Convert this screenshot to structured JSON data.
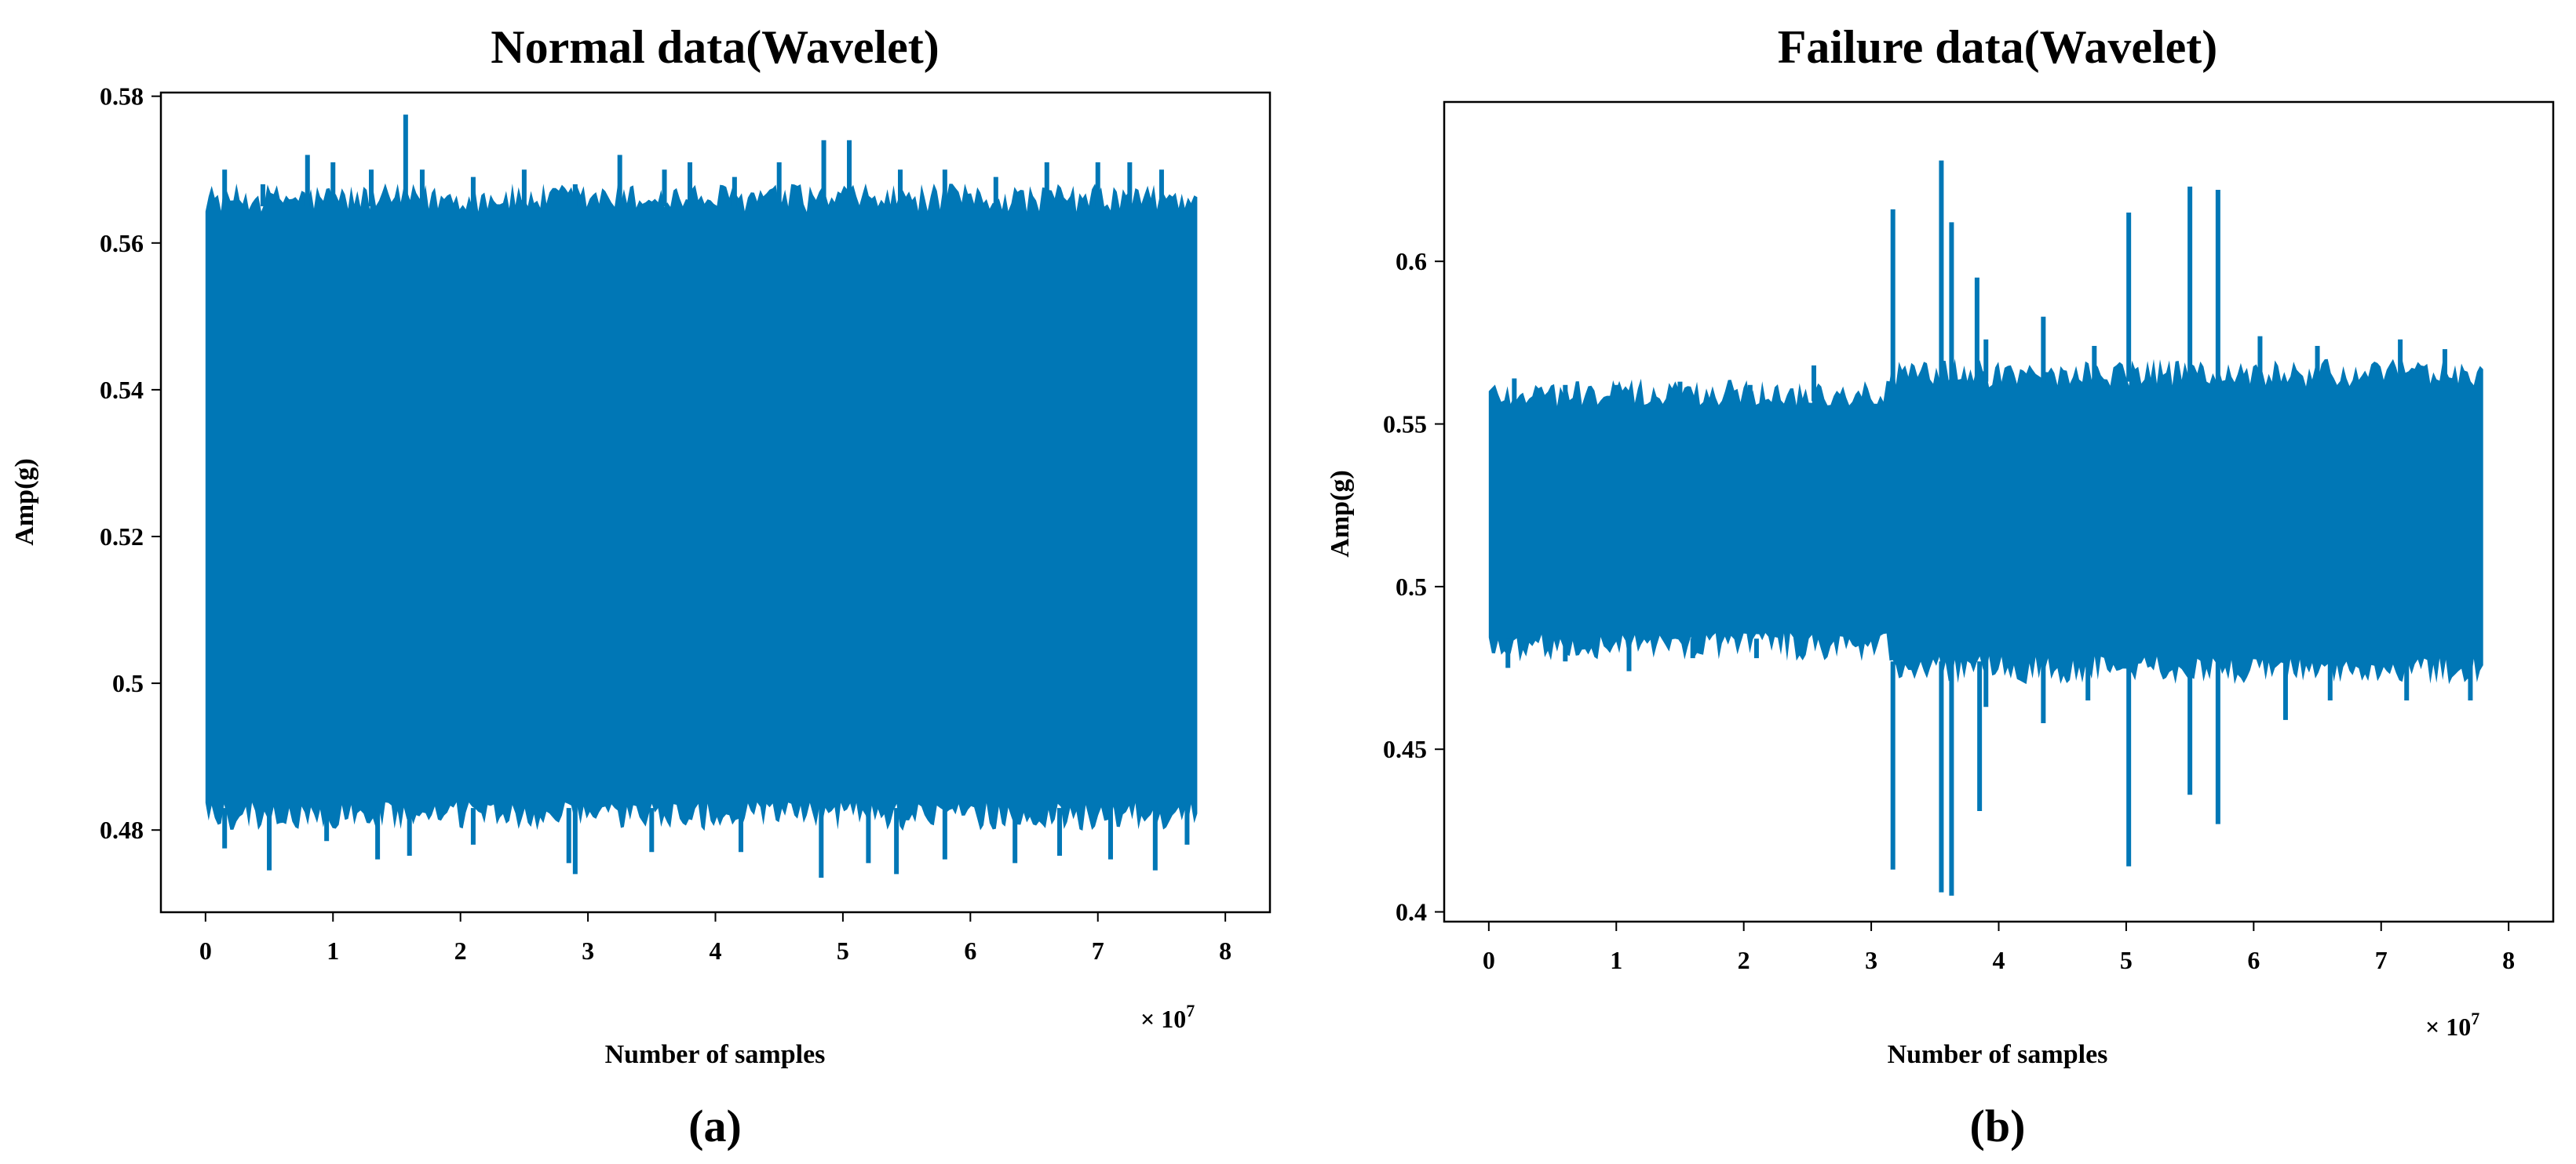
{
  "chart_data": [
    {
      "type": "line",
      "title": "Normal data(Wavelet)",
      "xlabel": "Number of samples",
      "ylabel": "Amp(g)",
      "x_multiplier": "× 10",
      "x_multiplier_exp": "7",
      "caption": "(a)",
      "xlim": [
        -0.35,
        8.35
      ],
      "ylim": [
        0.4688,
        0.5805
      ],
      "xticks": [
        0,
        1,
        2,
        3,
        4,
        5,
        6,
        7,
        8
      ],
      "xtick_labels": [
        "0",
        "1",
        "2",
        "3",
        "4",
        "5",
        "6",
        "7",
        "8"
      ],
      "yticks": [
        0.48,
        0.5,
        0.52,
        0.54,
        0.56,
        0.58
      ],
      "ytick_labels": [
        "0.48",
        "0.5",
        "0.52",
        "0.54",
        "0.56",
        "0.58"
      ],
      "grid": false,
      "series": [
        {
          "color": "#0077b6",
          "x_range": [
            0,
            7.78
          ],
          "band": {
            "upper": 0.565,
            "lower": 0.483
          },
          "upper_spikes": [
            [
              0.15,
              0.57
            ],
            [
              0.45,
              0.568
            ],
            [
              0.8,
              0.572
            ],
            [
              1.0,
              0.571
            ],
            [
              1.3,
              0.57
            ],
            [
              1.57,
              0.5775
            ],
            [
              1.7,
              0.57
            ],
            [
              2.1,
              0.569
            ],
            [
              2.5,
              0.57
            ],
            [
              2.9,
              0.568
            ],
            [
              3.25,
              0.572
            ],
            [
              3.6,
              0.57
            ],
            [
              3.8,
              0.571
            ],
            [
              4.15,
              0.569
            ],
            [
              4.5,
              0.571
            ],
            [
              4.85,
              0.574
            ],
            [
              5.05,
              0.574
            ],
            [
              5.45,
              0.57
            ],
            [
              5.8,
              0.57
            ],
            [
              6.2,
              0.569
            ],
            [
              6.6,
              0.571
            ],
            [
              7.0,
              0.571
            ],
            [
              7.25,
              0.571
            ],
            [
              7.5,
              0.57
            ]
          ],
          "lower_spikes": [
            [
              0.15,
              0.4775
            ],
            [
              0.5,
              0.4745
            ],
            [
              0.95,
              0.4785
            ],
            [
              1.35,
              0.476
            ],
            [
              1.6,
              0.4765
            ],
            [
              2.1,
              0.478
            ],
            [
              2.85,
              0.4755
            ],
            [
              2.9,
              0.474
            ],
            [
              3.5,
              0.477
            ],
            [
              4.2,
              0.477
            ],
            [
              4.83,
              0.4735
            ],
            [
              5.2,
              0.4755
            ],
            [
              5.42,
              0.474
            ],
            [
              5.8,
              0.476
            ],
            [
              6.35,
              0.4755
            ],
            [
              6.7,
              0.4765
            ],
            [
              7.1,
              0.476
            ],
            [
              7.45,
              0.4745
            ],
            [
              7.7,
              0.478
            ]
          ]
        }
      ]
    },
    {
      "type": "line",
      "title": "Failure data(Wavelet)",
      "xlabel": "Number of samples",
      "ylabel": "Amp(g)",
      "x_multiplier": "× 10",
      "x_multiplier_exp": "7",
      "caption": "(b)",
      "xlim": [
        -0.35,
        8.35
      ],
      "ylim": [
        0.397,
        0.649
      ],
      "xticks": [
        0,
        1,
        2,
        3,
        4,
        5,
        6,
        7,
        8
      ],
      "xtick_labels": [
        "0",
        "1",
        "2",
        "3",
        "4",
        "5",
        "6",
        "7",
        "8"
      ],
      "yticks": [
        0.4,
        0.45,
        0.5,
        0.55,
        0.6
      ],
      "ytick_labels": [
        "0.4",
        "0.45",
        "0.5",
        "0.55",
        "0.6"
      ],
      "grid": false,
      "series": [
        {
          "color": "#0077b6",
          "x_range": [
            0,
            7.8
          ],
          "band_segments": [
            {
              "x": [
                0,
                3.15
              ],
              "upper": 0.557,
              "lower": 0.484
            },
            {
              "x": [
                3.15,
                7.8
              ],
              "upper": 0.563,
              "lower": 0.477
            }
          ],
          "upper_spikes": [
            [
              0.2,
              0.564
            ],
            [
              0.6,
              0.562
            ],
            [
              1.0,
              0.562
            ],
            [
              1.5,
              0.563
            ],
            [
              2.05,
              0.562
            ],
            [
              2.55,
              0.568
            ],
            [
              3.17,
              0.616
            ],
            [
              3.55,
              0.631
            ],
            [
              3.63,
              0.612
            ],
            [
              3.83,
              0.595
            ],
            [
              3.9,
              0.576
            ],
            [
              4.35,
              0.583
            ],
            [
              4.75,
              0.574
            ],
            [
              5.02,
              0.615
            ],
            [
              5.5,
              0.623
            ],
            [
              5.72,
              0.622
            ],
            [
              6.05,
              0.577
            ],
            [
              6.5,
              0.574
            ],
            [
              7.15,
              0.576
            ],
            [
              7.5,
              0.573
            ]
          ],
          "lower_spikes": [
            [
              0.15,
              0.475
            ],
            [
              0.6,
              0.477
            ],
            [
              1.1,
              0.474
            ],
            [
              1.6,
              0.478
            ],
            [
              2.1,
              0.478
            ],
            [
              3.17,
              0.413
            ],
            [
              3.55,
              0.406
            ],
            [
              3.63,
              0.405
            ],
            [
              3.85,
              0.431
            ],
            [
              3.9,
              0.463
            ],
            [
              4.35,
              0.458
            ],
            [
              4.7,
              0.465
            ],
            [
              5.02,
              0.414
            ],
            [
              5.5,
              0.436
            ],
            [
              5.72,
              0.427
            ],
            [
              6.25,
              0.459
            ],
            [
              6.6,
              0.465
            ],
            [
              7.2,
              0.465
            ],
            [
              7.7,
              0.465
            ]
          ]
        }
      ]
    }
  ]
}
